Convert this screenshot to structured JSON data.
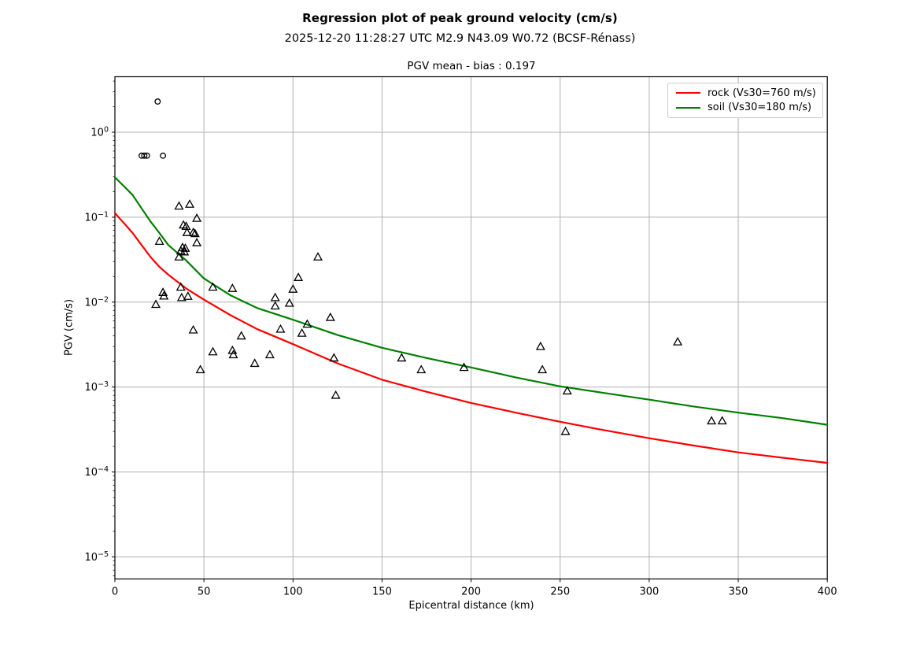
{
  "header": {
    "title": "Regression plot of peak ground velocity (cm/s)",
    "subtitle": "2025-12-20 11:28:27 UTC M2.9 N43.09 W0.72 (BCSF-Rénass)",
    "axes_title": "PGV mean - bias : 0.197",
    "bias": 0.197,
    "magnitude": "M2.9",
    "latitude": "N43.09",
    "longitude": "W0.72",
    "agency": "BCSF-Rénass"
  },
  "chart_data": {
    "type": "scatter",
    "title": "Regression plot of peak ground velocity (cm/s)",
    "xlabel": "Epicentral distance (km)",
    "ylabel": "PGV (cm/s)",
    "xlim": [
      0,
      400
    ],
    "ylim": [
      5.6e-06,
      4.45
    ],
    "x_scale": "linear",
    "y_scale": "log",
    "grid": true,
    "grid_color": "#b0b0b0",
    "spine_color": "#000000",
    "legend_position": "upper right",
    "x_ticks": [
      0,
      50,
      100,
      150,
      200,
      250,
      300,
      350,
      400
    ],
    "y_ticks": [
      {
        "value": 1,
        "label": "10⁰",
        "exp": "0"
      },
      {
        "value": 0.1,
        "label": "10⁻¹",
        "exp": "−1"
      },
      {
        "value": 0.01,
        "label": "10⁻²",
        "exp": "−2"
      },
      {
        "value": 0.001,
        "label": "10⁻³",
        "exp": "−3"
      },
      {
        "value": 0.0001,
        "label": "10⁻⁴",
        "exp": "−4"
      },
      {
        "value": 1e-05,
        "label": "10⁻⁵",
        "exp": "−5"
      }
    ],
    "series": [
      {
        "name": "rock (Vs30=760 m/s)",
        "type": "line",
        "color": "#ff0000",
        "points": [
          [
            0,
            0.112
          ],
          [
            3,
            0.095
          ],
          [
            6,
            0.081
          ],
          [
            10,
            0.065
          ],
          [
            15,
            0.047
          ],
          [
            20,
            0.034
          ],
          [
            25,
            0.026
          ],
          [
            30,
            0.021
          ],
          [
            40,
            0.0145
          ],
          [
            50,
            0.0107
          ],
          [
            65,
            0.007
          ],
          [
            80,
            0.0048
          ],
          [
            100,
            0.0032
          ],
          [
            125,
            0.0019
          ],
          [
            150,
            0.00122
          ],
          [
            175,
            0.00088
          ],
          [
            200,
            0.00065
          ],
          [
            225,
            0.0005
          ],
          [
            250,
            0.00039
          ],
          [
            275,
            0.00031
          ],
          [
            300,
            0.00025
          ],
          [
            325,
            0.000205
          ],
          [
            350,
            0.00017
          ],
          [
            375,
            0.000147
          ],
          [
            400,
            0.000128
          ]
        ]
      },
      {
        "name": "soil (Vs30=180 m/s)",
        "type": "line",
        "color": "#008000",
        "points": [
          [
            0,
            0.295
          ],
          [
            3,
            0.255
          ],
          [
            6,
            0.221
          ],
          [
            10,
            0.182
          ],
          [
            15,
            0.127
          ],
          [
            20,
            0.089
          ],
          [
            25,
            0.065
          ],
          [
            30,
            0.047
          ],
          [
            40,
            0.031
          ],
          [
            50,
            0.019
          ],
          [
            65,
            0.012
          ],
          [
            80,
            0.0085
          ],
          [
            100,
            0.0062
          ],
          [
            125,
            0.0041
          ],
          [
            150,
            0.0029
          ],
          [
            175,
            0.0022
          ],
          [
            200,
            0.0017
          ],
          [
            225,
            0.0013
          ],
          [
            250,
            0.00102
          ],
          [
            275,
            0.00085
          ],
          [
            300,
            0.00071
          ],
          [
            325,
            0.00059
          ],
          [
            350,
            0.0005
          ],
          [
            375,
            0.00043
          ],
          [
            400,
            0.00036
          ]
        ]
      },
      {
        "name": "stations (circle markers)",
        "type": "scatter",
        "marker": "circle",
        "color": "#000000",
        "points": [
          [
            15,
            0.53
          ],
          [
            16.5,
            0.53
          ],
          [
            18,
            0.53
          ],
          [
            27,
            0.53
          ],
          [
            24,
            2.3
          ]
        ]
      },
      {
        "name": "stations (triangle markers)",
        "type": "scatter",
        "marker": "triangle",
        "color": "#000000",
        "points": [
          [
            25,
            0.052
          ],
          [
            36,
            0.135
          ],
          [
            42,
            0.142
          ],
          [
            46,
            0.097
          ],
          [
            38.5,
            0.081
          ],
          [
            40,
            0.078
          ],
          [
            40.5,
            0.066
          ],
          [
            44,
            0.066
          ],
          [
            45,
            0.064
          ],
          [
            46,
            0.05
          ],
          [
            38,
            0.044
          ],
          [
            39.5,
            0.043
          ],
          [
            37,
            0.04
          ],
          [
            39,
            0.039
          ],
          [
            36,
            0.034
          ],
          [
            23,
            0.0094
          ],
          [
            27,
            0.013
          ],
          [
            27.5,
            0.0118
          ],
          [
            37,
            0.015
          ],
          [
            37.5,
            0.0113
          ],
          [
            41,
            0.0117
          ],
          [
            55,
            0.015
          ],
          [
            66,
            0.0145
          ],
          [
            44,
            0.0047
          ],
          [
            48,
            0.0016
          ],
          [
            55,
            0.0026
          ],
          [
            66,
            0.0027
          ],
          [
            66.5,
            0.0024
          ],
          [
            71,
            0.004
          ],
          [
            78.5,
            0.0019
          ],
          [
            87,
            0.0024
          ],
          [
            90,
            0.0113
          ],
          [
            90,
            0.009
          ],
          [
            93,
            0.0048
          ],
          [
            98,
            0.0097
          ],
          [
            100,
            0.0142
          ],
          [
            103,
            0.0195
          ],
          [
            105,
            0.0043
          ],
          [
            108,
            0.0055
          ],
          [
            114,
            0.034
          ],
          [
            121,
            0.0066
          ],
          [
            123,
            0.0022
          ],
          [
            124,
            0.0008
          ],
          [
            161,
            0.0022
          ],
          [
            172,
            0.0016
          ],
          [
            196,
            0.0017
          ],
          [
            239,
            0.003
          ],
          [
            240,
            0.0016
          ],
          [
            253,
            0.0003
          ],
          [
            254,
            0.0009
          ],
          [
            316,
            0.0034
          ],
          [
            335,
            0.0004
          ],
          [
            341,
            0.0004
          ]
        ]
      }
    ]
  }
}
